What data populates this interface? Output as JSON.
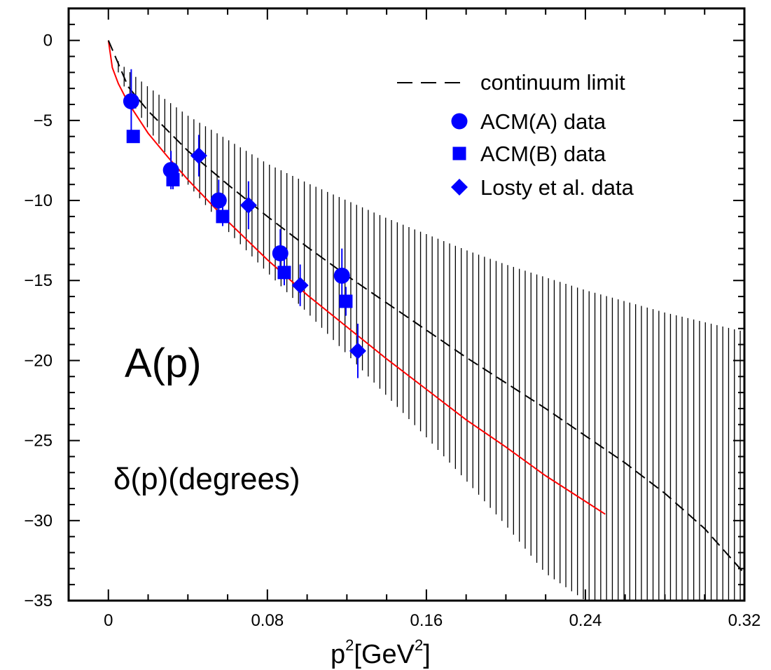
{
  "chart_data": {
    "type": "scatter",
    "title": "",
    "xlabel": "p",
    "xlabel_sup1": "2",
    "xlabel_mid": "[GeV",
    "xlabel_sup2": "2",
    "xlabel_end": "]",
    "ylabel": "",
    "xlim": [
      -0.02,
      0.32
    ],
    "ylim": [
      -35,
      2
    ],
    "x_ticks": [
      0,
      0.08,
      0.16,
      0.24,
      0.32
    ],
    "x_tick_labels": [
      "0",
      "0.08",
      "0.16",
      "0.24",
      "0.32"
    ],
    "y_ticks": [
      0,
      -5,
      -10,
      -15,
      -20,
      -25,
      -30,
      -35
    ],
    "y_tick_labels": [
      "0",
      "−5",
      "−10",
      "−15",
      "−20",
      "−25",
      "−30",
      "−35"
    ],
    "grid": false,
    "legend_position": "top-right",
    "annotations": [
      {
        "key": "panel",
        "text": "A(p)"
      },
      {
        "key": "quantity",
        "text": "δ(p)(degrees)"
      }
    ],
    "colors": {
      "points": "#0000ff",
      "fit": "#ff0000",
      "continuum": "#000000",
      "band": "#000000"
    },
    "continuum_limit": {
      "name": "continuum limit",
      "x": [
        0,
        0.01,
        0.02,
        0.04,
        0.06,
        0.08,
        0.1,
        0.12,
        0.14,
        0.16,
        0.18,
        0.2,
        0.22,
        0.24,
        0.26,
        0.28,
        0.3,
        0.32
      ],
      "y": [
        0,
        -2.9,
        -4.4,
        -6.9,
        -9.0,
        -11.0,
        -12.9,
        -14.7,
        -16.4,
        -18.1,
        -19.8,
        -21.4,
        -23.0,
        -24.7,
        -26.4,
        -28.3,
        -30.5,
        -33.3
      ]
    },
    "uncertainty_band": {
      "x": [
        0.005,
        0.01,
        0.02,
        0.04,
        0.06,
        0.08,
        0.1,
        0.12,
        0.14,
        0.16,
        0.18,
        0.2,
        0.22,
        0.24,
        0.26,
        0.28,
        0.3,
        0.32
      ],
      "upper": [
        -1.3,
        -1.9,
        -2.9,
        -4.7,
        -6.2,
        -7.7,
        -8.9,
        -10.0,
        -11.1,
        -12.1,
        -13.1,
        -14.0,
        -14.8,
        -15.6,
        -16.3,
        -17.0,
        -17.6,
        -18.2
      ],
      "lower": [
        -2.0,
        -3.5,
        -5.5,
        -9.0,
        -11.9,
        -14.5,
        -17.0,
        -19.6,
        -22.2,
        -24.8,
        -27.5,
        -30.3,
        -33.3,
        -35.0,
        -35.0,
        -35.0,
        -35.0,
        -35.0
      ]
    },
    "fit_curve": {
      "x": [
        0,
        0.002,
        0.005,
        0.01,
        0.02,
        0.03,
        0.04,
        0.06,
        0.08,
        0.1,
        0.12,
        0.14,
        0.16,
        0.18,
        0.2,
        0.22,
        0.24,
        0.25
      ],
      "y": [
        0,
        -1.7,
        -2.7,
        -3.9,
        -5.8,
        -7.3,
        -8.7,
        -11.3,
        -13.7,
        -15.9,
        -17.9,
        -19.9,
        -21.8,
        -23.7,
        -25.4,
        -27.2,
        -28.8,
        -29.6
      ]
    },
    "series": [
      {
        "name": "ACM(A) data",
        "marker": "circle",
        "x": [
          0.0115,
          0.0315,
          0.0555,
          0.0865,
          0.1175
        ],
        "y": [
          -3.8,
          -8.1,
          -10.0,
          -13.3,
          -14.7
        ],
        "err": [
          2.0,
          1.2,
          1.3,
          1.5,
          1.7
        ]
      },
      {
        "name": "ACM(B) data",
        "marker": "square",
        "x": [
          0.0125,
          0.0325,
          0.0575,
          0.0885,
          0.1195
        ],
        "y": [
          -6.0,
          -8.7,
          -11.0,
          -14.5,
          -16.3
        ],
        "err": [
          0.4,
          0.6,
          0.6,
          0.8,
          0.9
        ]
      },
      {
        "name": "Losty et al. data",
        "marker": "diamond",
        "x": [
          0.0455,
          0.0705,
          0.0965,
          0.1255
        ],
        "y": [
          -7.2,
          -10.3,
          -15.3,
          -19.4
        ],
        "err": [
          1.3,
          1.5,
          1.3,
          1.7
        ]
      }
    ]
  }
}
